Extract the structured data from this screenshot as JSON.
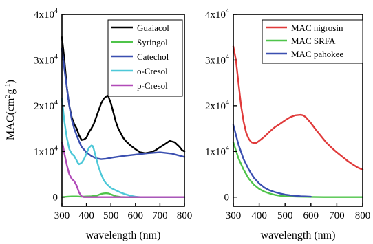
{
  "chart_data": [
    {
      "type": "line",
      "xlabel": "wavelength (nm)",
      "ylabel": "MAC(cm²g⁻¹)",
      "ylabel_parts": {
        "main": "MAC(cm",
        "sup1": "2",
        "mid": "g",
        "sup2": "-1",
        "end": ")"
      },
      "xlim": [
        300,
        800
      ],
      "ylim": [
        -2000,
        40000
      ],
      "xticks": [
        300,
        400,
        500,
        600,
        700,
        800
      ],
      "xtick_labels": [
        "300",
        "400",
        "500",
        "600",
        "700",
        "800"
      ],
      "yticks": [
        {
          "value": 0,
          "base": "0",
          "exp": ""
        },
        {
          "value": 10000,
          "base": "1x10",
          "exp": "4"
        },
        {
          "value": 20000,
          "base": "2x10",
          "exp": "4"
        },
        {
          "value": 30000,
          "base": "3x10",
          "exp": "4"
        },
        {
          "value": 40000,
          "base": "4x10",
          "exp": "4"
        }
      ],
      "legend_position": "top-right",
      "series": [
        {
          "name": "Guaiacol",
          "color": "#000000",
          "x": [
            300,
            310,
            320,
            330,
            340,
            350,
            360,
            370,
            380,
            390,
            400,
            410,
            420,
            430,
            440,
            450,
            460,
            470,
            480,
            485,
            490,
            500,
            510,
            520,
            530,
            540,
            550,
            560,
            580,
            600,
            620,
            640,
            660,
            680,
            700,
            720,
            740,
            760,
            780,
            790,
            800
          ],
          "y": [
            35000,
            30000,
            24000,
            20000,
            17500,
            16000,
            15000,
            13500,
            12500,
            12600,
            13000,
            14200,
            15000,
            16000,
            17500,
            19000,
            20500,
            21500,
            22000,
            22200,
            22000,
            20500,
            18500,
            16500,
            15000,
            14000,
            13000,
            12300,
            11300,
            10500,
            9800,
            9600,
            9800,
            10200,
            10900,
            11600,
            12300,
            12000,
            11000,
            10300,
            10000
          ]
        },
        {
          "name": "Syringol",
          "color": "#4fc44a",
          "x": [
            300,
            320,
            340,
            360,
            380,
            400,
            420,
            440,
            460,
            470,
            480,
            490,
            500,
            520,
            540,
            560,
            600,
            650,
            700,
            750,
            800
          ],
          "y": [
            0,
            100,
            150,
            150,
            100,
            150,
            200,
            300,
            700,
            800,
            850,
            800,
            600,
            200,
            50,
            0,
            0,
            0,
            0,
            0,
            0
          ]
        },
        {
          "name": "Catechol",
          "color": "#3a4fb0",
          "x": [
            300,
            310,
            320,
            330,
            340,
            350,
            360,
            370,
            380,
            400,
            420,
            440,
            460,
            480,
            500,
            550,
            600,
            650,
            700,
            750,
            800
          ],
          "y": [
            32500,
            28000,
            24000,
            20000,
            17000,
            15000,
            13500,
            12200,
            11000,
            9800,
            9000,
            8500,
            8300,
            8400,
            8600,
            9000,
            9300,
            9600,
            9800,
            9500,
            8800
          ]
        },
        {
          "name": "o-Cresol",
          "color": "#4dc8d8",
          "x": [
            300,
            305,
            310,
            320,
            330,
            340,
            350,
            360,
            365,
            370,
            380,
            390,
            400,
            410,
            420,
            425,
            430,
            440,
            450,
            460,
            470,
            480,
            490,
            500,
            520,
            540,
            560,
            580,
            600,
            620,
            650,
            700,
            800
          ],
          "y": [
            21500,
            19000,
            16500,
            13000,
            10500,
            9500,
            9000,
            8000,
            7500,
            7200,
            7500,
            8300,
            9500,
            10800,
            11300,
            11200,
            10500,
            8500,
            6500,
            5000,
            3800,
            3000,
            2500,
            2000,
            1500,
            1000,
            600,
            300,
            100,
            0,
            0,
            0,
            0
          ]
        },
        {
          "name": "p-Cresol",
          "color": "#b14ab8",
          "x": [
            300,
            305,
            310,
            320,
            330,
            340,
            350,
            360,
            370,
            380,
            390,
            400,
            450,
            500,
            600,
            700,
            800
          ],
          "y": [
            12000,
            11000,
            9500,
            7000,
            5000,
            4000,
            3500,
            2500,
            1000,
            200,
            0,
            0,
            0,
            0,
            0,
            0,
            0
          ]
        }
      ]
    },
    {
      "type": "line",
      "xlabel": "wavelength (nm)",
      "xlim": [
        300,
        800
      ],
      "ylim": [
        -2000,
        40000
      ],
      "xticks": [
        300,
        400,
        500,
        600,
        700,
        800
      ],
      "xtick_labels": [
        "300",
        "400",
        "500",
        "600",
        "700",
        "800"
      ],
      "yticks": [
        {
          "value": 0,
          "base": "0",
          "exp": ""
        },
        {
          "value": 10000,
          "base": "1x10",
          "exp": "4"
        },
        {
          "value": 20000,
          "base": "2x10",
          "exp": "4"
        },
        {
          "value": 30000,
          "base": "3x10",
          "exp": "4"
        },
        {
          "value": 40000,
          "base": "4x10",
          "exp": "4"
        }
      ],
      "legend_position": "top-right",
      "series": [
        {
          "name": "MAC nigrosin",
          "color": "#e03a3a",
          "x": [
            300,
            310,
            320,
            330,
            340,
            350,
            360,
            370,
            380,
            390,
            400,
            420,
            440,
            460,
            480,
            500,
            520,
            540,
            560,
            570,
            580,
            600,
            620,
            640,
            660,
            680,
            700,
            720,
            740,
            760,
            780,
            800
          ],
          "y": [
            33000,
            30000,
            25000,
            20000,
            16500,
            14000,
            12700,
            12000,
            11800,
            11900,
            12300,
            13200,
            14300,
            15300,
            16000,
            16800,
            17500,
            17900,
            18000,
            17900,
            17500,
            16200,
            14700,
            13300,
            11900,
            10800,
            9800,
            8900,
            8000,
            7200,
            6500,
            6000
          ]
        },
        {
          "name": "MAC SRFA",
          "color": "#4fc44a",
          "x": [
            300,
            320,
            340,
            360,
            380,
            400,
            420,
            440,
            460,
            480,
            500,
            550,
            600,
            650,
            700,
            750,
            800
          ],
          "y": [
            12000,
            8500,
            6000,
            4000,
            2700,
            1800,
            1200,
            800,
            500,
            300,
            200,
            100,
            50,
            0,
            0,
            0,
            0
          ]
        },
        {
          "name": "MAC pahokee",
          "color": "#3a4fb0",
          "x": [
            300,
            320,
            340,
            360,
            380,
            400,
            420,
            440,
            460,
            480,
            500,
            520,
            540,
            560,
            580,
            600
          ],
          "y": [
            15800,
            11500,
            8300,
            6000,
            4200,
            3000,
            2100,
            1500,
            1100,
            800,
            550,
            400,
            300,
            200,
            150,
            100
          ]
        }
      ]
    }
  ]
}
